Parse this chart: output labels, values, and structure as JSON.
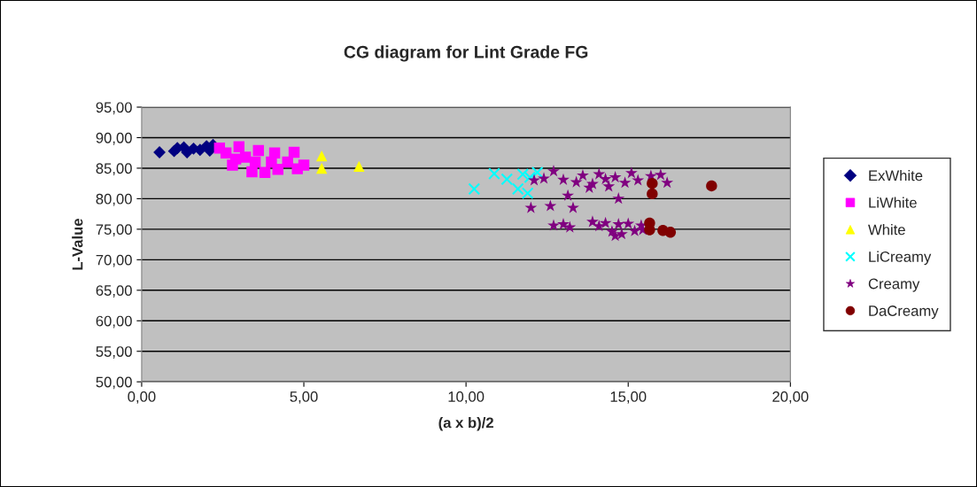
{
  "chart_data": {
    "type": "scatter",
    "title": "CG diagram for Lint Grade FG",
    "xlabel": "(a x b)/2",
    "ylabel": "L-Value",
    "xlim": [
      0,
      20
    ],
    "ylim": [
      50,
      95
    ],
    "xticks": [
      {
        "value": 0,
        "label": "0,00"
      },
      {
        "value": 5,
        "label": "5,00"
      },
      {
        "value": 10,
        "label": "10,00"
      },
      {
        "value": 15,
        "label": "15,00"
      },
      {
        "value": 20,
        "label": "20,00"
      }
    ],
    "yticks": [
      {
        "value": 50,
        "label": "50,00"
      },
      {
        "value": 55,
        "label": "55,00"
      },
      {
        "value": 60,
        "label": "60,00"
      },
      {
        "value": 65,
        "label": "65,00"
      },
      {
        "value": 70,
        "label": "70,00"
      },
      {
        "value": 75,
        "label": "75,00"
      },
      {
        "value": 80,
        "label": "80,00"
      },
      {
        "value": 85,
        "label": "85,00"
      },
      {
        "value": 90,
        "label": "90,00"
      },
      {
        "value": 95,
        "label": "95,00"
      }
    ],
    "grid": "y",
    "legend": "right",
    "series": [
      {
        "name": "ExWhite",
        "color": "#000080",
        "marker": "diamond",
        "x": [
          0.55,
          1.0,
          1.1,
          1.3,
          1.4,
          1.6,
          1.8,
          2.0,
          2.1,
          2.2
        ],
        "values": [
          87.6,
          87.8,
          88.3,
          88.4,
          87.6,
          88.2,
          88.0,
          88.6,
          87.9,
          88.8
        ]
      },
      {
        "name": "LiWhite",
        "color": "#ff00ff",
        "marker": "square",
        "x": [
          2.4,
          2.6,
          2.8,
          2.9,
          3.0,
          3.2,
          3.4,
          3.5,
          3.6,
          3.8,
          4.0,
          4.1,
          4.2,
          4.5,
          4.7,
          4.8,
          5.0
        ],
        "values": [
          88.3,
          87.5,
          85.5,
          86.5,
          88.5,
          86.8,
          84.4,
          86.0,
          87.9,
          84.3,
          86.0,
          87.5,
          84.8,
          86.0,
          87.6,
          84.9,
          85.5
        ]
      },
      {
        "name": "White",
        "color": "#ffff00",
        "marker": "triangle",
        "x": [
          5.55,
          5.55,
          6.7
        ],
        "values": [
          87.0,
          85.0,
          85.3
        ]
      },
      {
        "name": "LiCreamy",
        "color": "#00ffff",
        "marker": "cross",
        "x": [
          10.25,
          10.87,
          11.26,
          11.6,
          11.75,
          11.9,
          11.97,
          12.2
        ],
        "values": [
          81.6,
          84.1,
          83.2,
          81.6,
          84.0,
          80.9,
          83.5,
          84.3
        ]
      },
      {
        "name": "Creamy",
        "color": "#800080",
        "marker": "star",
        "x": [
          12.0,
          12.6,
          13.3,
          13.14,
          14.7,
          12.1,
          12.4,
          12.7,
          13.0,
          13.4,
          13.6,
          13.9,
          14.1,
          14.3,
          14.6,
          14.9,
          15.1,
          15.3,
          15.7,
          16.0,
          16.2,
          13.8,
          14.4,
          12.7,
          13.0,
          13.2,
          13.9,
          14.1,
          14.3,
          14.5,
          14.7,
          14.8,
          15.0,
          15.2,
          15.4,
          15.45,
          14.6
        ],
        "values": [
          78.5,
          78.8,
          78.5,
          80.5,
          80.0,
          83.0,
          83.3,
          84.5,
          83.1,
          82.7,
          83.8,
          82.4,
          84.0,
          83.2,
          83.5,
          82.6,
          84.2,
          83.0,
          83.7,
          83.9,
          82.6,
          81.8,
          82.0,
          75.6,
          75.8,
          75.3,
          76.2,
          75.5,
          76.0,
          74.6,
          75.8,
          74.2,
          75.9,
          74.7,
          75.6,
          74.9,
          73.9
        ]
      },
      {
        "name": "DaCreamy",
        "color": "#800000",
        "marker": "circle",
        "x": [
          15.74,
          15.74,
          15.66,
          15.66,
          16.07,
          16.3,
          17.57
        ],
        "values": [
          82.5,
          80.8,
          76.0,
          74.9,
          74.8,
          74.5,
          82.1
        ]
      }
    ]
  }
}
